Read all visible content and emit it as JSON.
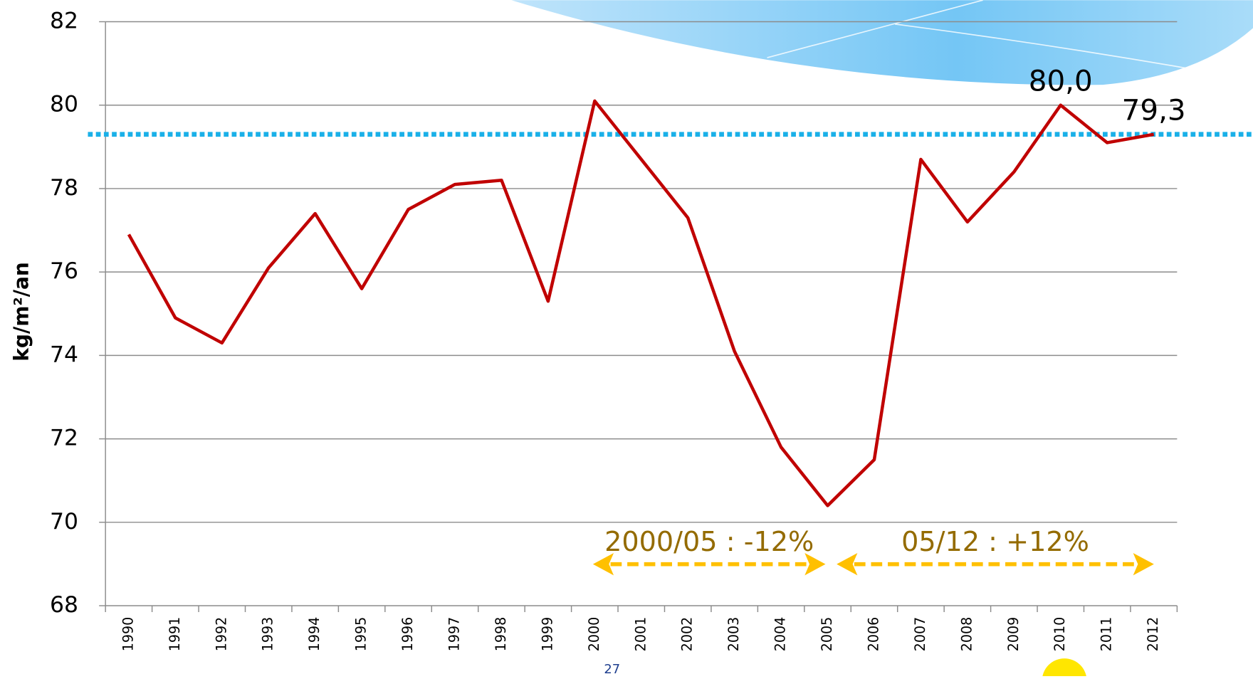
{
  "chart_data": {
    "type": "line",
    "ylabel": "kg/m²/an",
    "categories": [
      "1990",
      "1991",
      "1992",
      "1993",
      "1994",
      "1995",
      "1996",
      "1997",
      "1998",
      "1999",
      "2000",
      "2001",
      "2002",
      "2003",
      "2004",
      "2005",
      "2006",
      "2007",
      "2008",
      "2009",
      "2010",
      "2011",
      "2012"
    ],
    "series": [
      {
        "name": "kg/m²/an",
        "color": "#c00000",
        "values": [
          76.9,
          74.9,
          74.3,
          76.1,
          77.4,
          75.6,
          77.5,
          78.1,
          78.2,
          75.3,
          80.1,
          78.7,
          77.3,
          74.1,
          71.8,
          70.4,
          71.5,
          78.7,
          77.2,
          78.4,
          80.0,
          79.1,
          79.3
        ],
        "value_labels": [
          null,
          null,
          null,
          null,
          null,
          null,
          null,
          null,
          null,
          null,
          null,
          null,
          null,
          null,
          null,
          null,
          null,
          null,
          null,
          null,
          "80,0",
          null,
          "79,3"
        ]
      }
    ],
    "reference_line": {
      "value": 79.3,
      "color": "#1ab0e8"
    },
    "annotations": [
      {
        "text": "2000/05 : -12%",
        "color": "#ffc000"
      },
      {
        "text": "05/12 : +12%",
        "color": "#ffc000"
      }
    ],
    "page_number": "27",
    "ylim": [
      68,
      82
    ],
    "yticks": [
      68,
      70,
      72,
      74,
      76,
      78,
      80,
      82
    ],
    "grid": true
  }
}
